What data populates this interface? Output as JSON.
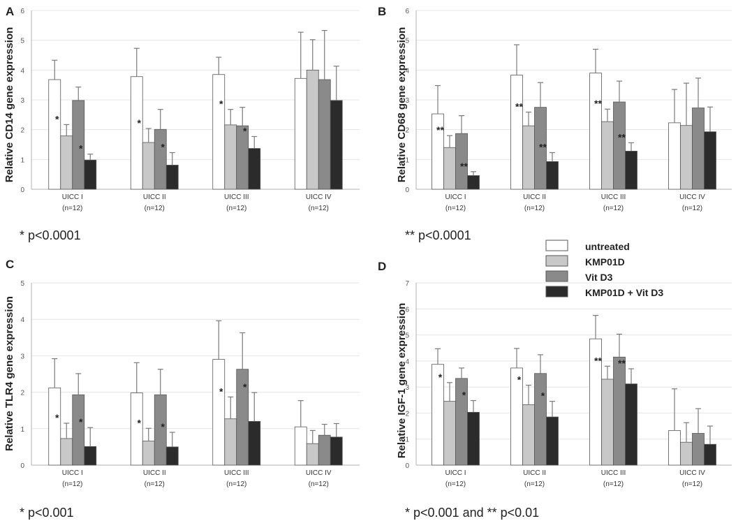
{
  "colors": {
    "untreated": "#ffffff",
    "kmp01d": "#c8c8c8",
    "vitd3": "#8a8a8a",
    "combo": "#2b2b2b",
    "grid": "#e4e4e4",
    "axis": "#b0b0b0",
    "errorbar": "#7a7a7a",
    "text": "#222222"
  },
  "legend": {
    "items": [
      {
        "label": "untreated",
        "color_key": "untreated"
      },
      {
        "label": "KMP01D",
        "color_key": "kmp01d"
      },
      {
        "label": "Vit D3",
        "color_key": "vitd3"
      },
      {
        "label": "KMP01D + Vit D3",
        "color_key": "combo"
      }
    ]
  },
  "chart_data": [
    {
      "panel": "A",
      "type": "bar",
      "ylabel": "Relative CD14 gene expression",
      "ylim": [
        0,
        6
      ],
      "yticks": [
        0,
        1,
        2,
        3,
        4,
        5,
        6
      ],
      "categories": [
        "UICC I",
        "UICC II",
        "UICC III",
        "UICC IV"
      ],
      "category_sublabels": [
        "(n=12)",
        "(n=12)",
        "(n=12)",
        "(n=12)"
      ],
      "series": [
        {
          "name": "untreated",
          "values": [
            3.68,
            3.78,
            3.85,
            3.72
          ],
          "errors": [
            0.65,
            0.95,
            0.58,
            1.55
          ]
        },
        {
          "name": "KMP01D",
          "values": [
            1.79,
            1.57,
            2.16,
            4.0
          ],
          "errors": [
            0.38,
            0.47,
            0.52,
            1.02
          ]
        },
        {
          "name": "Vit D3",
          "values": [
            2.98,
            2.01,
            2.13,
            3.68
          ],
          "errors": [
            0.45,
            0.67,
            0.62,
            1.65
          ]
        },
        {
          "name": "KMP01D + Vit D3",
          "values": [
            0.98,
            0.81,
            1.37,
            2.98
          ],
          "errors": [
            0.2,
            0.42,
            0.4,
            1.15
          ]
        }
      ],
      "significance": [
        {
          "category": 0,
          "series": 1,
          "label": "*"
        },
        {
          "category": 0,
          "series": 3,
          "label": "*"
        },
        {
          "category": 1,
          "series": 1,
          "label": "*"
        },
        {
          "category": 1,
          "series": 3,
          "label": "*"
        },
        {
          "category": 2,
          "series": 1,
          "label": "*"
        },
        {
          "category": 2,
          "series": 3,
          "label": "*"
        }
      ],
      "footnote": "* p<0.0001"
    },
    {
      "panel": "B",
      "type": "bar",
      "ylabel": "Relative CD68 gene expression",
      "ylim": [
        0,
        6
      ],
      "yticks": [
        0,
        1,
        2,
        3,
        4,
        5,
        6
      ],
      "categories": [
        "UICC I",
        "UICC II",
        "UICC III",
        "UICC IV"
      ],
      "category_sublabels": [
        "(n=12)",
        "(n=12)",
        "(n=12)",
        "(n=12)"
      ],
      "series": [
        {
          "name": "untreated",
          "values": [
            2.53,
            3.83,
            3.9,
            2.23
          ],
          "errors": [
            0.95,
            1.02,
            0.8,
            1.12
          ]
        },
        {
          "name": "KMP01D",
          "values": [
            1.4,
            2.13,
            2.27,
            2.14
          ],
          "errors": [
            0.4,
            0.46,
            0.42,
            1.42
          ]
        },
        {
          "name": "Vit D3",
          "values": [
            1.87,
            2.75,
            2.93,
            2.73
          ],
          "errors": [
            0.6,
            0.83,
            0.7,
            1.0
          ]
        },
        {
          "name": "KMP01D + Vit D3",
          "values": [
            0.46,
            0.93,
            1.28,
            1.93
          ],
          "errors": [
            0.13,
            0.3,
            0.28,
            0.83
          ]
        }
      ],
      "significance": [
        {
          "category": 0,
          "series": 1,
          "label": "**"
        },
        {
          "category": 0,
          "series": 3,
          "label": "**"
        },
        {
          "category": 1,
          "series": 1,
          "label": "**"
        },
        {
          "category": 1,
          "series": 3,
          "label": "**"
        },
        {
          "category": 2,
          "series": 1,
          "label": "**"
        },
        {
          "category": 2,
          "series": 3,
          "label": "**"
        }
      ],
      "footnote": "** p<0.0001"
    },
    {
      "panel": "C",
      "type": "bar",
      "ylabel": "Relative TLR4 gene expression",
      "ylim": [
        0,
        5
      ],
      "yticks": [
        0,
        1,
        2,
        3,
        4,
        5
      ],
      "categories": [
        "UICC I",
        "UICC II",
        "UICC III",
        "UICC IV"
      ],
      "category_sublabels": [
        "(n=12)",
        "(n=12)",
        "(n=12)",
        "(n=12)"
      ],
      "series": [
        {
          "name": "untreated",
          "values": [
            2.12,
            1.98,
            2.9,
            1.05
          ],
          "errors": [
            0.8,
            0.83,
            1.06,
            0.72
          ]
        },
        {
          "name": "KMP01D",
          "values": [
            0.73,
            0.66,
            1.27,
            0.59
          ],
          "errors": [
            0.42,
            0.35,
            0.6,
            0.36
          ]
        },
        {
          "name": "Vit D3",
          "values": [
            1.93,
            1.93,
            2.63,
            0.82
          ],
          "errors": [
            0.58,
            0.7,
            1.0,
            0.3
          ]
        },
        {
          "name": "KMP01D + Vit D3",
          "values": [
            0.51,
            0.5,
            1.2,
            0.77
          ],
          "errors": [
            0.52,
            0.4,
            0.79,
            0.37
          ]
        }
      ],
      "significance": [
        {
          "category": 0,
          "series": 1,
          "label": "*"
        },
        {
          "category": 0,
          "series": 3,
          "label": "*"
        },
        {
          "category": 1,
          "series": 1,
          "label": "*"
        },
        {
          "category": 1,
          "series": 3,
          "label": "*"
        },
        {
          "category": 2,
          "series": 1,
          "label": "*"
        },
        {
          "category": 2,
          "series": 3,
          "label": "*"
        }
      ],
      "footnote": "* p<0.001"
    },
    {
      "panel": "D",
      "type": "bar",
      "ylabel": "Relative IGF-1 gene expression",
      "ylim": [
        0,
        7
      ],
      "yticks": [
        0,
        1,
        2,
        3,
        4,
        5,
        6,
        7
      ],
      "categories": [
        "UICC I",
        "UICC II",
        "UICC III",
        "UICC IV"
      ],
      "category_sublabels": [
        "(n=12)",
        "(n=12)",
        "(n=12)",
        "(n=12)"
      ],
      "series": [
        {
          "name": "untreated",
          "values": [
            3.87,
            3.73,
            4.85,
            1.33
          ],
          "errors": [
            0.6,
            0.75,
            0.9,
            1.6
          ]
        },
        {
          "name": "KMP01D",
          "values": [
            2.45,
            2.32,
            3.3,
            0.88
          ],
          "errors": [
            0.72,
            0.75,
            0.5,
            0.75
          ]
        },
        {
          "name": "Vit D3",
          "values": [
            3.33,
            3.52,
            4.15,
            1.22
          ],
          "errors": [
            0.4,
            0.72,
            0.88,
            0.95
          ]
        },
        {
          "name": "KMP01D + Vit D3",
          "values": [
            2.03,
            1.85,
            3.12,
            0.8
          ],
          "errors": [
            0.45,
            0.6,
            0.58,
            0.7
          ]
        }
      ],
      "significance": [
        {
          "category": 0,
          "series": 1,
          "label": "*"
        },
        {
          "category": 0,
          "series": 3,
          "label": "*"
        },
        {
          "category": 1,
          "series": 1,
          "label": "*"
        },
        {
          "category": 1,
          "series": 3,
          "label": "*"
        },
        {
          "category": 2,
          "series": 1,
          "label": "**"
        },
        {
          "category": 2,
          "series": 3,
          "label": "**"
        }
      ],
      "footnote": "* p<0.001 and ** p<0.01"
    }
  ]
}
